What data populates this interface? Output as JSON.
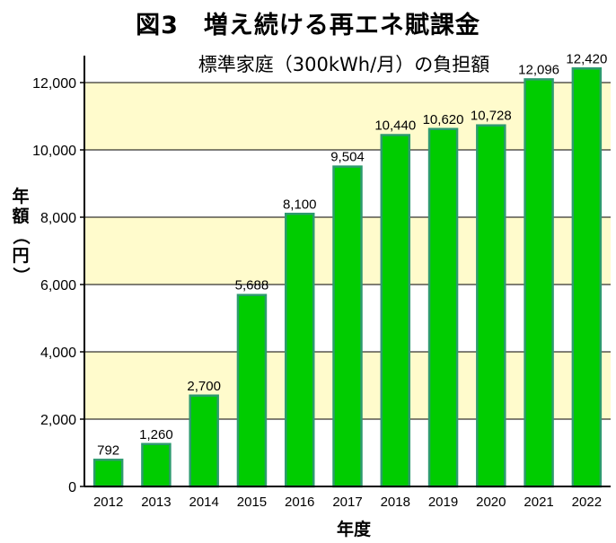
{
  "figure": {
    "title": "図3　増え続ける再エネ賦課金"
  },
  "chart_data": {
    "type": "bar",
    "title": "標準家庭（300kWh/月）の負担額",
    "xlabel": "年度",
    "ylabel": "年額（円）",
    "categories": [
      "2012",
      "2013",
      "2014",
      "2015",
      "2016",
      "2017",
      "2018",
      "2019",
      "2020",
      "2021",
      "2022"
    ],
    "values": [
      792,
      1260,
      2700,
      5688,
      8100,
      9504,
      10440,
      10620,
      10728,
      12096,
      12420
    ],
    "value_labels": [
      "792",
      "1,260",
      "2,700",
      "5,688",
      "8,100",
      "9,504",
      "10,440",
      "10,620",
      "10,728",
      "12,096",
      "12,420"
    ],
    "ylim": [
      0,
      12800
    ],
    "yticks": [
      0,
      2000,
      4000,
      6000,
      8000,
      10000,
      12000
    ],
    "ytick_labels": [
      "0",
      "2,000",
      "4,000",
      "6,000",
      "8,000",
      "10,000",
      "12,000"
    ],
    "grid": true,
    "legend": "none",
    "colors": {
      "bar_fill": "#00cc00",
      "bar_edge": "#2e9b6f",
      "band_fill": "#fffbcc",
      "background": "#ffffff",
      "axis": "#000000"
    }
  }
}
